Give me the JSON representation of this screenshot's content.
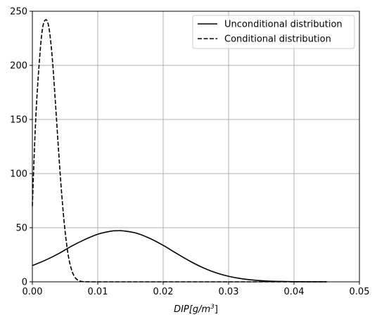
{
  "chart_data": {
    "type": "line",
    "title": "",
    "xlabel": "DIP",
    "xlabel_unit_prefix": "[g/m",
    "xlabel_unit_exp": "3",
    "xlabel_unit_suffix": "]",
    "xlim": [
      0,
      0.05
    ],
    "ylim": [
      0,
      250
    ],
    "xticks": [
      0.0,
      0.01,
      0.02,
      0.03,
      0.04,
      0.05
    ],
    "xtick_labels": [
      "0.00",
      "0.01",
      "0.02",
      "0.03",
      "0.04",
      "0.05"
    ],
    "yticks": [
      0,
      50,
      100,
      150,
      200,
      250
    ],
    "ytick_labels": [
      "0",
      "50",
      "100",
      "150",
      "200",
      "250"
    ],
    "grid": true,
    "legend_position": "top-right",
    "series": [
      {
        "name": "Unconditional distribution",
        "style": "solid",
        "color": "#000000",
        "x": [
          0.0,
          0.002,
          0.004,
          0.006,
          0.008,
          0.01,
          0.012,
          0.013,
          0.014,
          0.016,
          0.018,
          0.02,
          0.022,
          0.024,
          0.026,
          0.028,
          0.03,
          0.032,
          0.034,
          0.036,
          0.038,
          0.04,
          0.042,
          0.045
        ],
        "y": [
          15,
          20,
          26,
          33,
          39,
          44,
          46.8,
          47.2,
          47,
          44.8,
          40,
          33.7,
          26.4,
          19.4,
          13.3,
          8.5,
          5.1,
          2.9,
          1.5,
          0.7,
          0.35,
          0.15,
          0.06,
          0.01
        ]
      },
      {
        "name": "Conditional distribution",
        "style": "dashed",
        "color": "#000000",
        "x": [
          0.0,
          0.0003,
          0.0006,
          0.001,
          0.0015,
          0.002,
          0.0025,
          0.003,
          0.0035,
          0.004,
          0.0045,
          0.005,
          0.0055,
          0.006,
          0.0065,
          0.007,
          0.0075,
          0.008,
          0.009,
          0.01,
          0.015,
          0.02,
          0.03,
          0.04,
          0.045
        ],
        "y": [
          70,
          120,
          160,
          198,
          232,
          242,
          236,
          210,
          168,
          122,
          80,
          47,
          24,
          11,
          4.2,
          1.4,
          0.4,
          0.1,
          0,
          0,
          0,
          0,
          0,
          0,
          0
        ]
      }
    ]
  }
}
